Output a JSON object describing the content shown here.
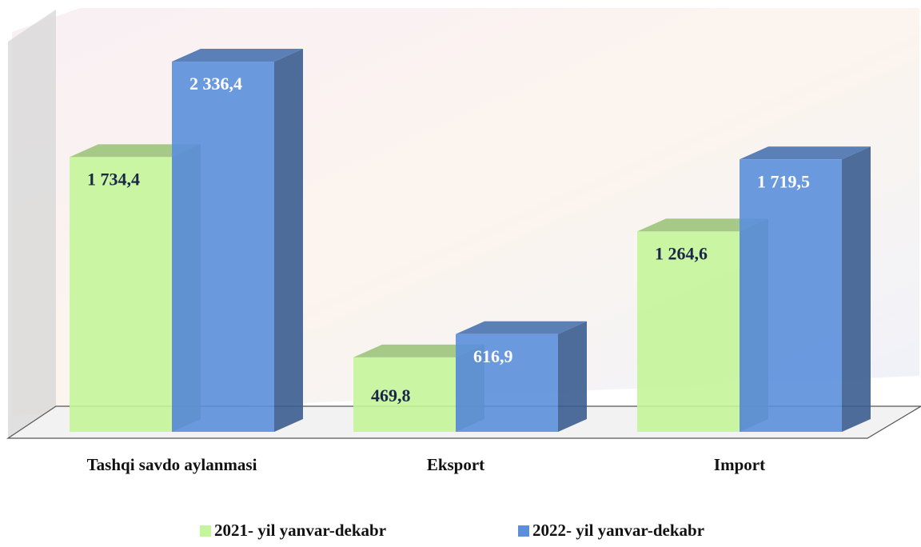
{
  "chart_data": {
    "type": "bar",
    "categories": [
      "Tashqi savdo aylanmasi",
      "Eksport",
      "Import"
    ],
    "series": [
      {
        "name": "2021- yil yanvar-dekabr",
        "color": "#c4f59a",
        "values": [
          1734.4,
          469.8,
          1264.6
        ],
        "value_labels": [
          "1 734,4",
          "469,8",
          "1 264,6"
        ]
      },
      {
        "name": "2022- yil yanvar-dekabr",
        "color": "#5b8fdc",
        "values": [
          2336.4,
          616.9,
          1719.5
        ],
        "value_labels": [
          "2 336,4",
          "616,9",
          "1 719,5"
        ]
      }
    ],
    "ylim": [
      0,
      2700
    ]
  }
}
